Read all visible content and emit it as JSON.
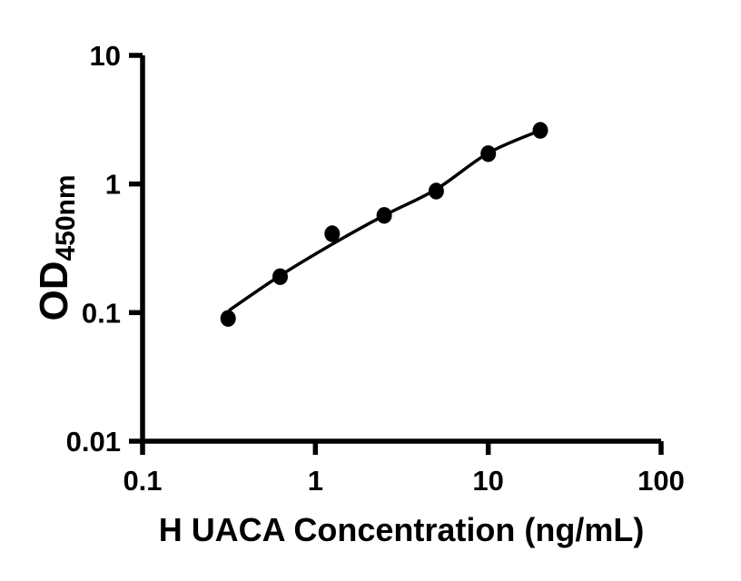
{
  "figure": {
    "background": "#ffffff",
    "foreground": "#000000"
  },
  "chart_data": {
    "type": "scatter",
    "title": "",
    "xlabel": "H UACA Concentration (ng/mL)",
    "ylabel": "OD450nm",
    "ylabel_main": "OD",
    "ylabel_sub": "450nm",
    "x_scale": "log10",
    "y_scale": "log10",
    "xlim": [
      0.1,
      100
    ],
    "ylim": [
      0.01,
      10
    ],
    "grid": false,
    "legend_visible": false,
    "x_ticks": [
      {
        "value": 0.1,
        "label": "0.1"
      },
      {
        "value": 1,
        "label": "1"
      },
      {
        "value": 10,
        "label": "10"
      },
      {
        "value": 100,
        "label": "100"
      }
    ],
    "y_ticks": [
      {
        "value": 0.01,
        "label": "0.01"
      },
      {
        "value": 0.1,
        "label": "0.1"
      },
      {
        "value": 1,
        "label": "1"
      },
      {
        "value": 10,
        "label": "10"
      }
    ],
    "series": [
      {
        "marker": "filled-circle",
        "marker_color": "#000000",
        "line_color": "#000000",
        "points": [
          {
            "x": 0.3125,
            "y": 0.09
          },
          {
            "x": 0.625,
            "y": 0.19
          },
          {
            "x": 1.25,
            "y": 0.41
          },
          {
            "x": 2.5,
            "y": 0.57
          },
          {
            "x": 5,
            "y": 0.88
          },
          {
            "x": 10,
            "y": 1.72
          },
          {
            "x": 20,
            "y": 2.61
          }
        ],
        "fit_curve": [
          {
            "x": 0.32,
            "y": 0.105
          },
          {
            "x": 0.625,
            "y": 0.194
          },
          {
            "x": 1.25,
            "y": 0.34
          },
          {
            "x": 2.5,
            "y": 0.57
          },
          {
            "x": 5,
            "y": 0.91
          },
          {
            "x": 10,
            "y": 1.74
          },
          {
            "x": 20,
            "y": 2.61
          }
        ]
      }
    ]
  }
}
